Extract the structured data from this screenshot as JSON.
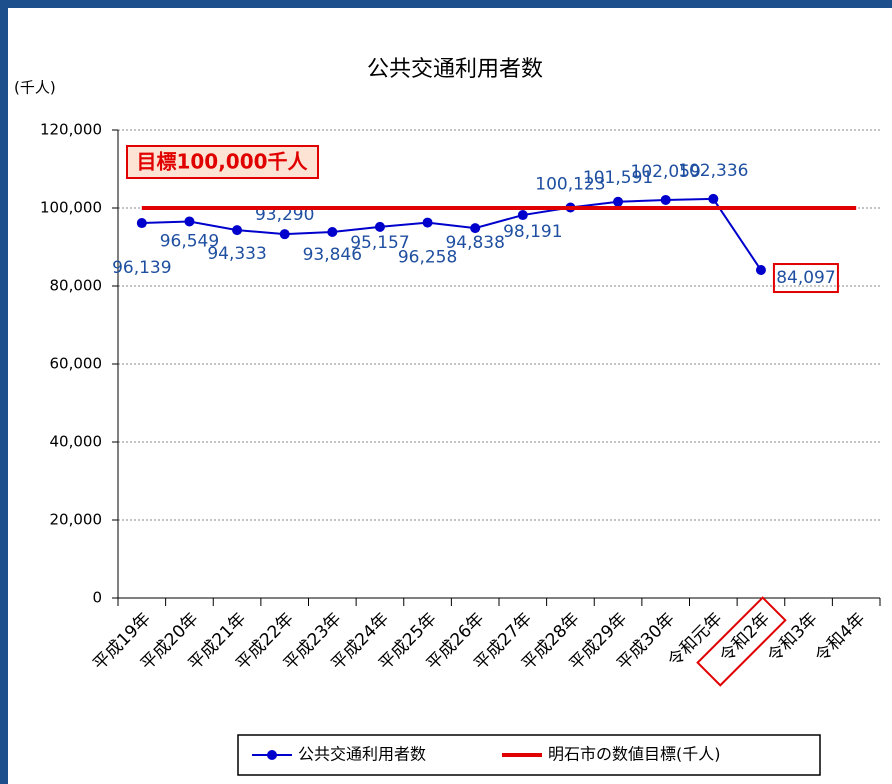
{
  "chart_data": {
    "type": "line",
    "title": "公共交通利用者数",
    "y_unit": "(千人)",
    "annotation": "目標100,000千人",
    "categories": [
      "平成19年",
      "平成20年",
      "平成21年",
      "平成22年",
      "平成23年",
      "平成24年",
      "平成25年",
      "平成26年",
      "平成27年",
      "平成28年",
      "平成29年",
      "平成30年",
      "令和元年",
      "令和2年",
      "令和3年",
      "令和4年"
    ],
    "series": [
      {
        "name": "公共交通利用者数",
        "color": "#0000cc",
        "marker": "circle",
        "values": [
          96139,
          96549,
          94333,
          93290,
          93846,
          95157,
          96258,
          94838,
          98191,
          100123,
          101591,
          102059,
          102336,
          84097,
          null,
          null
        ],
        "value_labels": [
          "96,139",
          "96,549",
          "94,333",
          "93,290",
          "93,846",
          "95,157",
          "96,258",
          "94,838",
          "98,191",
          "100,123",
          "101,591",
          "102,059",
          "102,336",
          "84,097",
          null,
          null
        ]
      },
      {
        "name": "明石市の数値目標(千人)",
        "color": "#e00000",
        "marker": "none",
        "values": [
          100000,
          100000,
          100000,
          100000,
          100000,
          100000,
          100000,
          100000,
          100000,
          100000,
          100000,
          100000,
          100000,
          100000,
          100000,
          100000
        ]
      }
    ],
    "ylim": [
      0,
      120000
    ],
    "yticks": [
      0,
      {
        "value": 20000,
        "label": "20,000"
      },
      {
        "value": 40000,
        "label": "40,000"
      },
      {
        "value": 60000,
        "label": "60,000"
      },
      {
        "value": 80000,
        "label": "80,000"
      },
      {
        "value": 100000,
        "label": "100,000"
      },
      {
        "value": 120000,
        "label": "120,000"
      }
    ],
    "grid": true,
    "legend": "bottom"
  }
}
